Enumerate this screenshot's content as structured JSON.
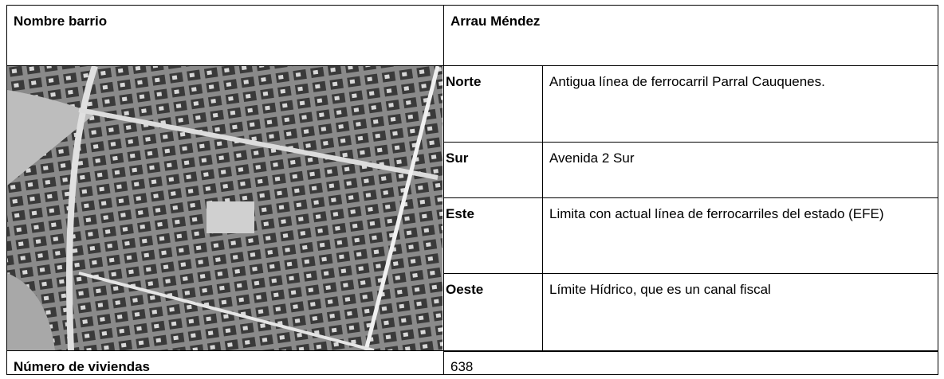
{
  "header": {
    "label": "Nombre barrio",
    "value": "Arrau Méndez"
  },
  "boundaries": [
    {
      "direction": "Norte",
      "description": "Antigua línea de ferrocarril Parral Cauquenes."
    },
    {
      "direction": "Sur",
      "description": "Avenida 2 Sur"
    },
    {
      "direction": "Este",
      "description": "Limita con actual línea de ferrocarriles del estado (EFE)"
    },
    {
      "direction": "Oeste",
      "description": "Límite Hídrico, que es un canal fiscal"
    }
  ],
  "footer": {
    "label": "Número de viviendas",
    "value": 638
  }
}
